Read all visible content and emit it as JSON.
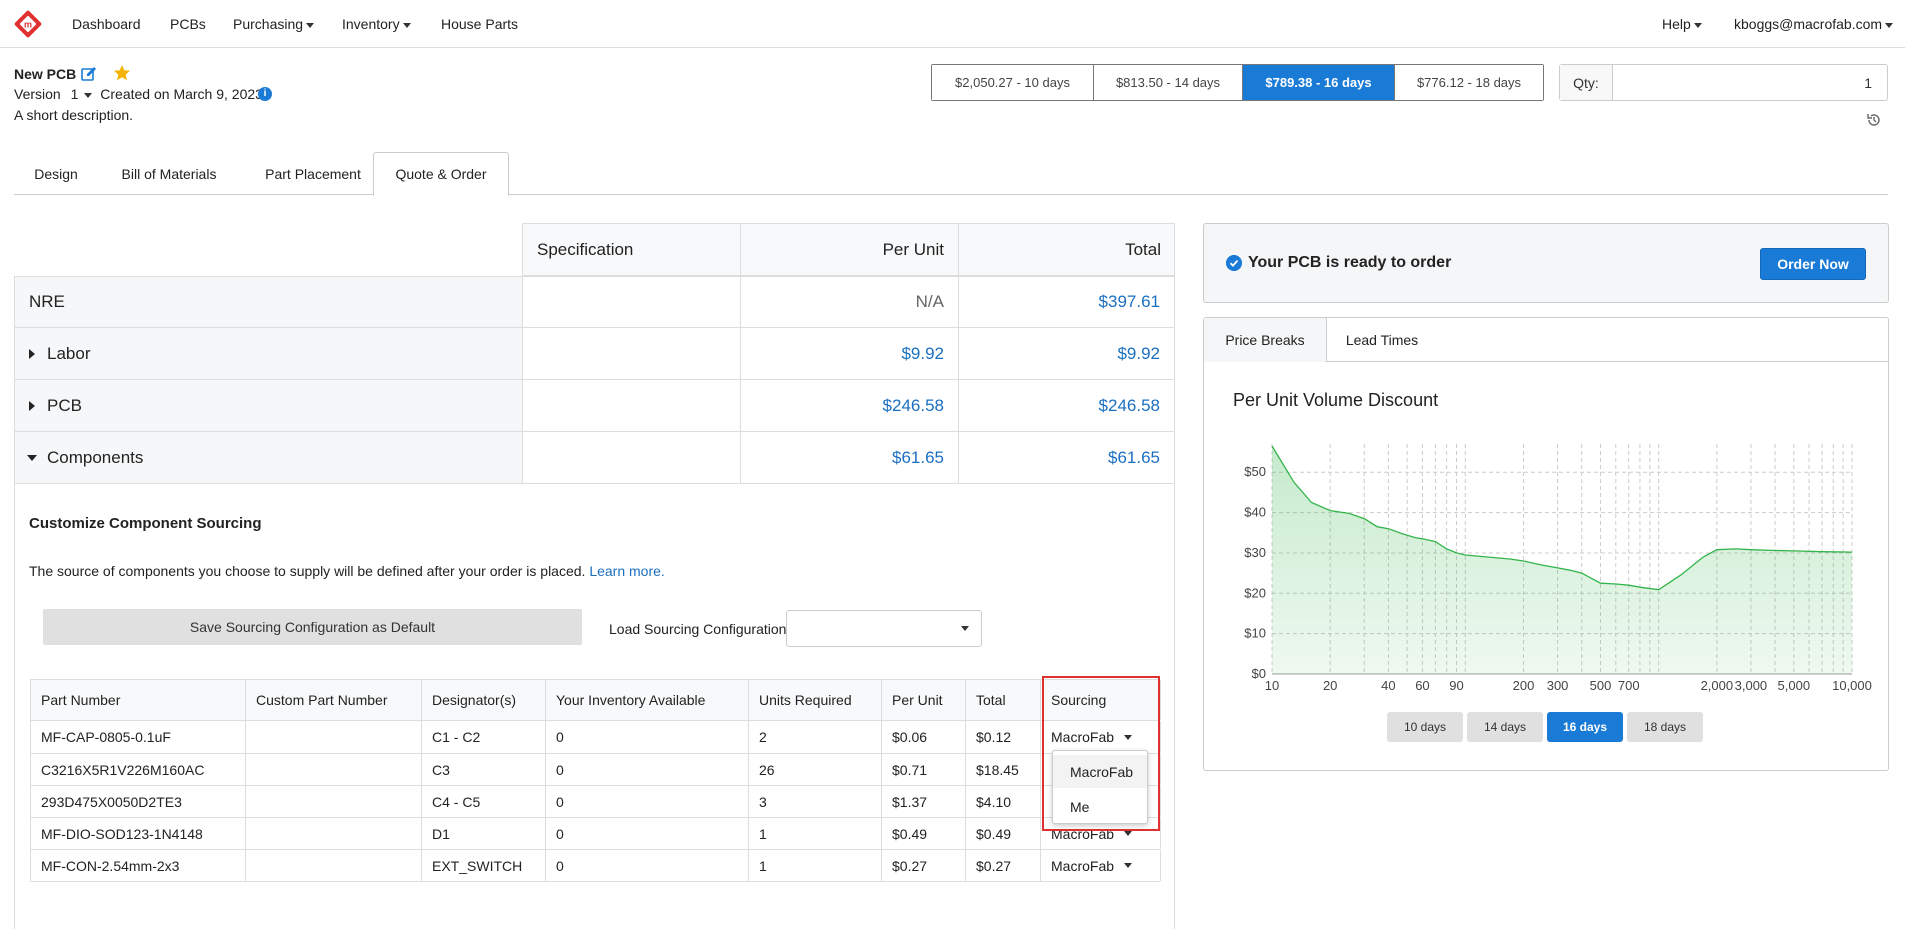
{
  "nav": {
    "items": [
      "Dashboard",
      "PCBs",
      "Purchasing",
      "Inventory",
      "House Parts"
    ],
    "help": "Help",
    "user": "kboggs@macrofab.com"
  },
  "pcb": {
    "title": "New PCB",
    "version_label": "Version",
    "version_value": "1",
    "created": "Created on March 9, 2023",
    "description": "A short description."
  },
  "price_options": [
    "$2,050.27 - 10 days",
    "$813.50 - 14 days",
    "$789.38 - 16 days",
    "$776.12 - 18 days"
  ],
  "price_selected_index": 2,
  "qty": {
    "label": "Qty:",
    "value": "1"
  },
  "tabs": [
    "Design",
    "Bill of Materials",
    "Part Placement",
    "Quote & Order"
  ],
  "tab_active": "Quote & Order",
  "cost_table": {
    "headers": [
      "Specification",
      "Per Unit",
      "Total"
    ],
    "rows": [
      {
        "label": "NRE",
        "per_unit": "N/A",
        "total": "$397.61"
      },
      {
        "label": "Labor",
        "per_unit": "$9.92",
        "total": "$9.92"
      },
      {
        "label": "PCB",
        "per_unit": "$246.58",
        "total": "$246.58"
      },
      {
        "label": "Components",
        "per_unit": "$61.65",
        "total": "$61.65"
      }
    ]
  },
  "sourcing": {
    "title": "Customize Component Sourcing",
    "description": "The source of components you choose to supply will be defined after your order is placed.",
    "learn_more": "Learn more.",
    "save_button": "Save Sourcing Configuration as Default",
    "load_label": "Load Sourcing Configuration",
    "load_value": ""
  },
  "parts_table": {
    "headers": [
      "Part Number",
      "Custom Part Number",
      "Designator(s)",
      "Your Inventory Available",
      "Units Required",
      "Per Unit",
      "Total",
      "Sourcing"
    ],
    "rows": [
      [
        "MF-CAP-0805-0.1uF",
        "",
        "C1 - C2",
        "0",
        "2",
        "$0.06",
        "$0.12",
        "MacroFab"
      ],
      [
        "C3216X5R1V226M160AC",
        "",
        "C3",
        "0",
        "26",
        "$0.71",
        "$18.45",
        ""
      ],
      [
        "293D475X0050D2TE3",
        "",
        "C4 - C5",
        "0",
        "3",
        "$1.37",
        "$4.10",
        ""
      ],
      [
        "MF-DIO-SOD123-1N4148",
        "",
        "D1",
        "0",
        "1",
        "$0.49",
        "$0.49",
        "MacroFab"
      ],
      [
        "MF-CON-2.54mm-2x3",
        "",
        "EXT_SWITCH",
        "0",
        "1",
        "$0.27",
        "$0.27",
        "MacroFab"
      ]
    ]
  },
  "sourcing_dropdown": {
    "options": [
      "MacroFab",
      "Me"
    ],
    "selected": "MacroFab"
  },
  "ready": {
    "text": "Your PCB is ready to order",
    "button": "Order Now"
  },
  "chart_tabs": [
    "Price Breaks",
    "Lead Times"
  ],
  "chart_tab_active": "Price Breaks",
  "chart_data": {
    "type": "area",
    "title": "Per Unit Volume Discount",
    "xlabel": "",
    "ylabel": "",
    "x_scale": "log",
    "x_ticks": [
      "10",
      "20",
      "40",
      "60",
      "90",
      "200",
      "300",
      "500",
      "700",
      "2,000",
      "3,000",
      "5,000",
      "10,000"
    ],
    "y_ticks": [
      "$0",
      "$10",
      "$20",
      "$30",
      "$40",
      "$50"
    ],
    "ylim": [
      0,
      57
    ],
    "grid": true,
    "color": "#33b44a",
    "series": [
      {
        "x": [
          10,
          13,
          16,
          20,
          25,
          30,
          35,
          40,
          47,
          55,
          60,
          70,
          80,
          90,
          100,
          130,
          170,
          200,
          250,
          300,
          350,
          400,
          500,
          600,
          700,
          800,
          1000,
          1300,
          1700,
          2000,
          2500,
          3000,
          4000,
          5000,
          7000,
          10000
        ],
        "y": [
          56.5,
          47.5,
          42.5,
          40.5,
          39.8,
          38.5,
          36.5,
          36.0,
          34.8,
          33.8,
          33.5,
          32.8,
          31.0,
          30.0,
          29.5,
          29.0,
          28.5,
          28.0,
          27.0,
          26.3,
          25.7,
          25.0,
          22.5,
          22.3,
          22.0,
          21.5,
          20.9,
          24.5,
          29.0,
          30.8,
          31.0,
          30.8,
          30.6,
          30.5,
          30.3,
          30.2
        ]
      }
    ]
  },
  "day_buttons": [
    "10 days",
    "14 days",
    "16 days",
    "18 days"
  ],
  "day_active": "16 days"
}
